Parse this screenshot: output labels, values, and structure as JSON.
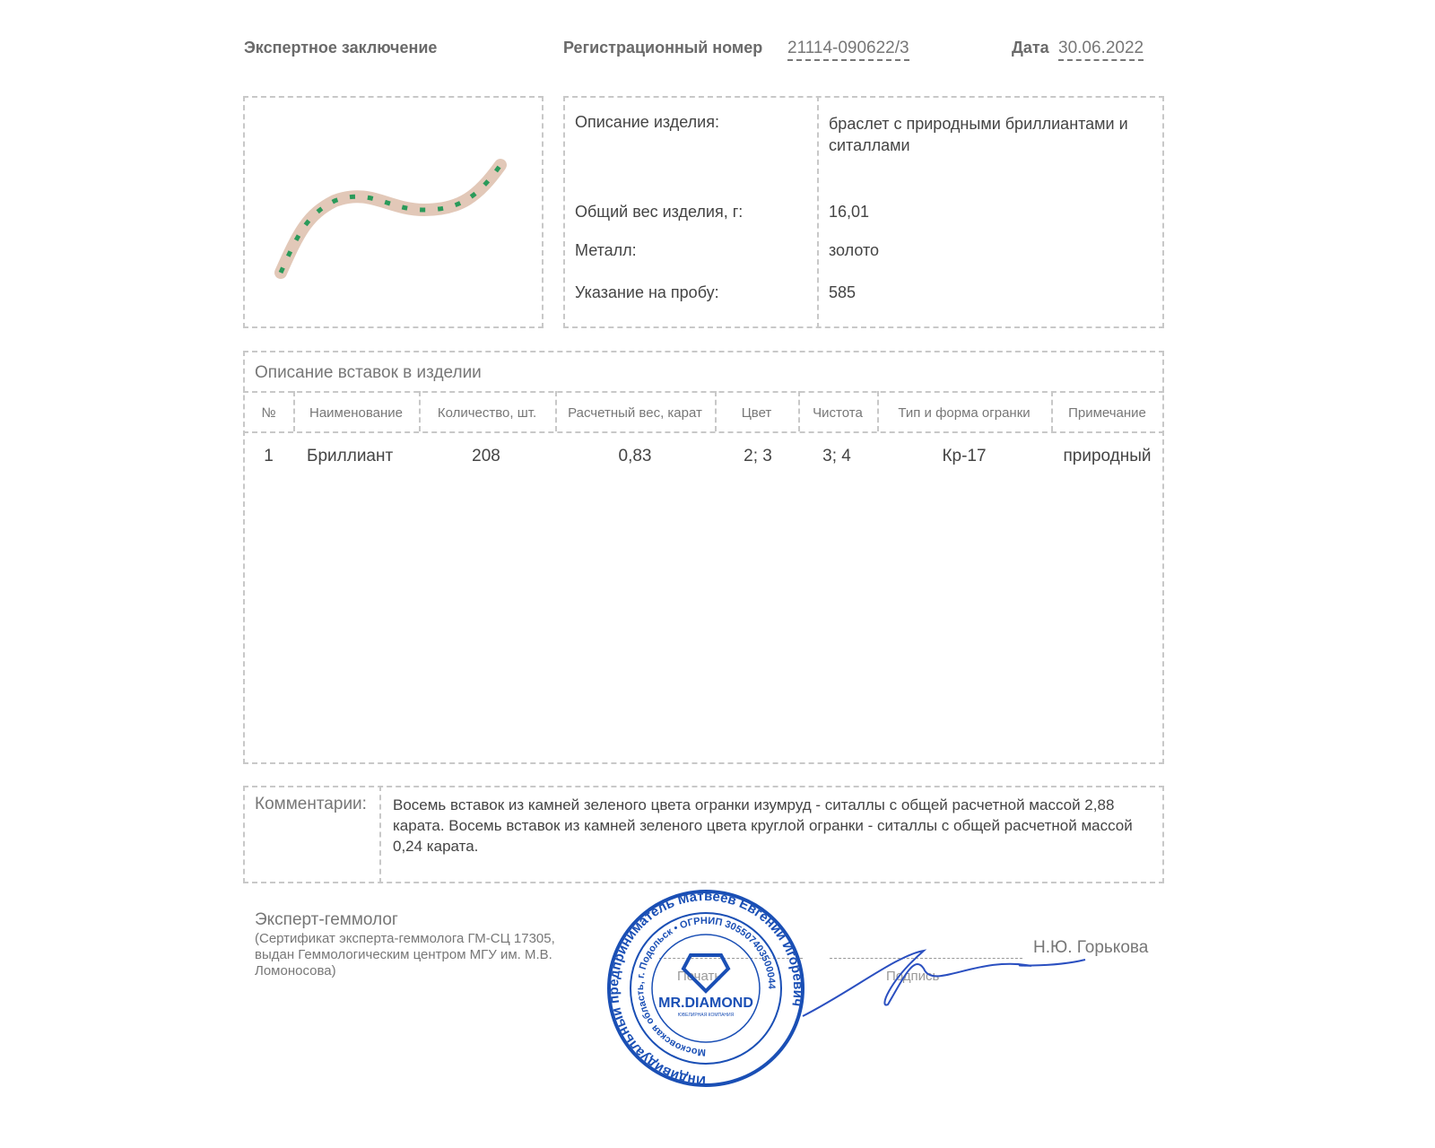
{
  "header": {
    "title": "Экспертное заключение",
    "reg_label": "Регистрационный номер",
    "reg_number": "21114-090622/3",
    "date_label": "Дата",
    "date": "30.06.2022"
  },
  "item": {
    "rows": [
      {
        "label": "Описание изделия:",
        "value": "браслет с природными бриллиантами и ситаллами"
      },
      {
        "label": "Общий вес изделия, г:",
        "value": "16,01"
      },
      {
        "label": "Металл:",
        "value": "золото"
      },
      {
        "label": "Указание на пробу:",
        "value": "585"
      }
    ]
  },
  "inserts": {
    "title": "Описание вставок в изделии",
    "columns": [
      "№",
      "Наименование",
      "Количество, шт.",
      "Расчетный вес, карат",
      "Цвет",
      "Чистота",
      "Тип и форма огранки",
      "Примечание"
    ],
    "rows": [
      [
        "1",
        "Бриллиант",
        "208",
        "0,83",
        "2; 3",
        "3; 4",
        "Кр-17",
        "природный"
      ]
    ]
  },
  "comments": {
    "label": "Комментарии:",
    "text": "Восемь вставок из камней зеленого цвета огранки изумруд - ситаллы с общей расчетной массой 2,88 карата. Восемь вставок из камней зеленого цвета круглой огранки - ситаллы с общей расчетной массой 0,24 карата."
  },
  "expert": {
    "title": "Эксперт-геммолог",
    "certificate": "(Сертификат эксперта-геммолога ГМ-СЦ 17305, выдан Геммологическим центром МГУ им. М.В. Ломоносова)",
    "stamp_label": "Печать",
    "signature_label": "Подпись",
    "name": "Н.Ю. Горькова"
  },
  "stamp": {
    "outer_text": "Индивидуальный предприниматель Матвеев Евгений Игоревич",
    "inner_text": "Московская область, г. Подольск • ОГРНИП 305507403500044",
    "brand": "MR.DIAMOND",
    "brand_sub": "ЮВЕЛИРНАЯ КОМПАНИЯ",
    "color": "#1a4fb5"
  }
}
